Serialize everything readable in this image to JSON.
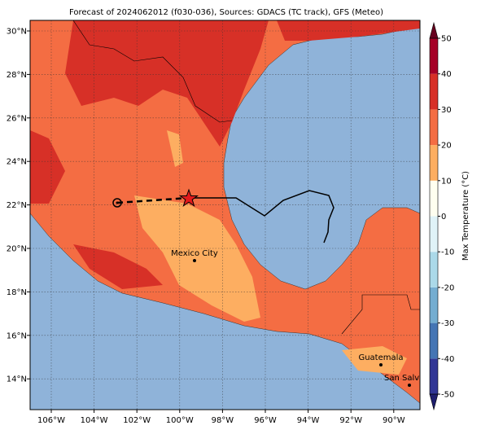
{
  "title": "Forecast of 2024062012 (f030-036), Sources: GDACS (TC track), GFS (Meteo)",
  "lon_ticks": [
    {
      "value": -106,
      "label": "106°W"
    },
    {
      "value": -104,
      "label": "104°W"
    },
    {
      "value": -102,
      "label": "102°W"
    },
    {
      "value": -100,
      "label": "100°W"
    },
    {
      "value": -98,
      "label": "98°W"
    },
    {
      "value": -96,
      "label": "96°W"
    },
    {
      "value": -94,
      "label": "94°W"
    },
    {
      "value": -92,
      "label": "92°W"
    },
    {
      "value": -90,
      "label": "90°W"
    }
  ],
  "lat_ticks": [
    {
      "value": 14,
      "label": "14°N"
    },
    {
      "value": 16,
      "label": "16°N"
    },
    {
      "value": 18,
      "label": "18°N"
    },
    {
      "value": 20,
      "label": "20°N"
    },
    {
      "value": 22,
      "label": "22°N"
    },
    {
      "value": 24,
      "label": "24°N"
    },
    {
      "value": 26,
      "label": "26°N"
    },
    {
      "value": 28,
      "label": "28°N"
    },
    {
      "value": 30,
      "label": "30°N"
    }
  ],
  "colorbar": {
    "label": "Max Temperature (°C)",
    "lim": [
      -50,
      50
    ],
    "ticks": [
      -50,
      -40,
      -30,
      -20,
      -10,
      0,
      10,
      20,
      30,
      40,
      50
    ],
    "colors": [
      "#313695",
      "#4575b4",
      "#74add1",
      "#abd9e9",
      "#e0f3f8",
      "#fffff0",
      "#fdae61",
      "#f46d43",
      "#d73027",
      "#a50026"
    ]
  },
  "cities": [
    {
      "name": "Mexico City"
    },
    {
      "name": "Guatemala"
    },
    {
      "name": "San Salvad"
    }
  ]
}
